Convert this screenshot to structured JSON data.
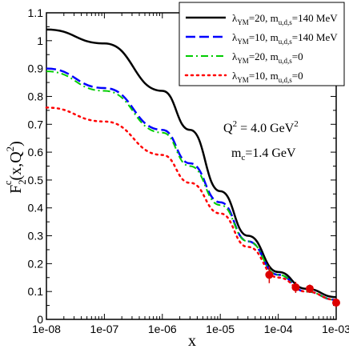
{
  "chart_data": {
    "type": "line",
    "xlabel": "x",
    "ylabel": "F₂ᶜ(x,Q²)",
    "x_scale": "log",
    "xlim": [
      1e-08,
      0.001
    ],
    "ylim": [
      0,
      1.1
    ],
    "x_ticks": [
      1e-08,
      1e-07,
      1e-06,
      1e-05,
      0.0001,
      0.001
    ],
    "x_tick_labels": [
      "1e-08",
      "1e-07",
      "1e-06",
      "1e-05",
      "1e-04",
      "1e-03"
    ],
    "y_ticks": [
      0,
      0.1,
      0.2,
      0.3,
      0.4,
      0.5,
      0.6,
      0.7,
      0.8,
      0.9,
      1,
      1.1
    ],
    "y_tick_labels": [
      "0",
      "0.1",
      "0.2",
      "0.3",
      "0.4",
      "0.5",
      "0.6",
      "0.7",
      "0.8",
      "0.9",
      "1",
      "1.1"
    ],
    "grid": false,
    "legend_position": "top-right",
    "annotations": [
      {
        "text": "Q² = 4.0 GeV²"
      },
      {
        "text": "mc=1.4 GeV"
      }
    ],
    "series": [
      {
        "name": "λYM=20, mu,d,s=140 MeV",
        "style": "solid",
        "color": "#000000",
        "x": [
          1e-08,
          1e-07,
          1e-06,
          3e-06,
          1e-05,
          3e-05,
          0.0001,
          0.0003,
          0.001
        ],
        "y": [
          1.04,
          0.99,
          0.82,
          0.68,
          0.46,
          0.3,
          0.17,
          0.11,
          0.08
        ]
      },
      {
        "name": "λYM=10, mu,d,s=140 MeV",
        "style": "dashed",
        "color": "#0000ff",
        "x": [
          1e-08,
          1e-07,
          1e-06,
          3e-06,
          1e-05,
          3e-05,
          0.0001,
          0.0003,
          0.001
        ],
        "y": [
          0.9,
          0.83,
          0.68,
          0.56,
          0.42,
          0.28,
          0.16,
          0.1,
          0.07
        ]
      },
      {
        "name": "λYM=20, mu,d,s=0",
        "style": "dashdot",
        "color": "#00cc00",
        "x": [
          1e-08,
          1e-07,
          1e-06,
          3e-06,
          1e-05,
          3e-05,
          0.0001,
          0.0003,
          0.001
        ],
        "y": [
          0.89,
          0.82,
          0.67,
          0.55,
          0.41,
          0.28,
          0.16,
          0.1,
          0.07
        ]
      },
      {
        "name": "λYM=10, mu,d,s=0",
        "style": "dotted",
        "color": "#ff0000",
        "x": [
          1e-08,
          1e-07,
          1e-06,
          3e-06,
          1e-05,
          3e-05,
          0.0001,
          0.0003,
          0.001
        ],
        "y": [
          0.76,
          0.71,
          0.59,
          0.49,
          0.38,
          0.26,
          0.15,
          0.1,
          0.07
        ]
      }
    ],
    "data_points": {
      "color": "#dd0000",
      "x": [
        7e-05,
        0.0002,
        0.00035,
        0.001
      ],
      "y": [
        0.16,
        0.115,
        0.11,
        0.06
      ],
      "yerr": [
        0.03,
        0.02,
        0.015,
        0.015
      ]
    }
  },
  "legend": {
    "entries": [
      {
        "sym": "λ",
        "sub": "YM",
        "mid": "=20, m",
        "sub2": "u,d,s",
        "tail": "=140 MeV"
      },
      {
        "sym": "λ",
        "sub": "YM",
        "mid": "=10, m",
        "sub2": "u,d,s",
        "tail": "=140 MeV"
      },
      {
        "sym": "λ",
        "sub": "YM",
        "mid": "=20, m",
        "sub2": "u,d,s",
        "tail": "=0"
      },
      {
        "sym": "λ",
        "sub": "YM",
        "mid": "=10, m",
        "sub2": "u,d,s",
        "tail": "=0"
      }
    ]
  },
  "ylabel_parts": {
    "F": "F",
    "two": "2",
    "c": "c",
    "arg": "(x,Q",
    "sq": "2",
    "close": ")"
  },
  "annot_parts": {
    "q_main": "Q",
    "q_sup": "2",
    "q_eq": " = 4.0 GeV",
    "q_sup2": "2",
    "m_main": "m",
    "m_sub": "c",
    "m_eq": "=1.4 GeV"
  }
}
